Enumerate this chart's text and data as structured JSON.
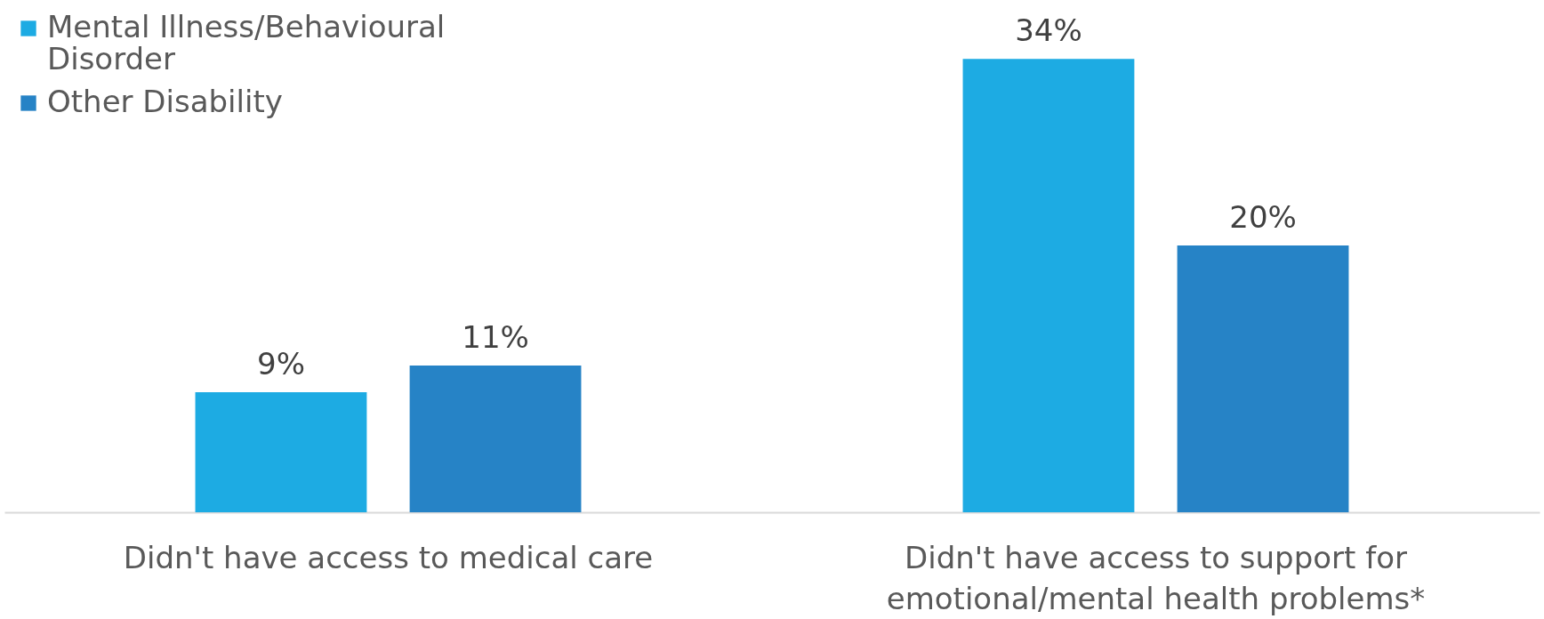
{
  "chart_data": {
    "type": "bar",
    "categories": [
      "Didn't have access to medical care",
      "Didn't have access to support for emotional/mental health problems*"
    ],
    "series": [
      {
        "name": "Mental Illness/Behavioural Disorder",
        "color": "#1dabe3",
        "values": [
          9,
          34
        ],
        "value_labels": [
          "9%",
          "34%"
        ]
      },
      {
        "name": "Other Disability",
        "color": "#2683c6",
        "values": [
          11,
          20
        ],
        "value_labels": [
          "11%",
          "20%"
        ]
      }
    ],
    "legend": "top left",
    "grid": false
  }
}
